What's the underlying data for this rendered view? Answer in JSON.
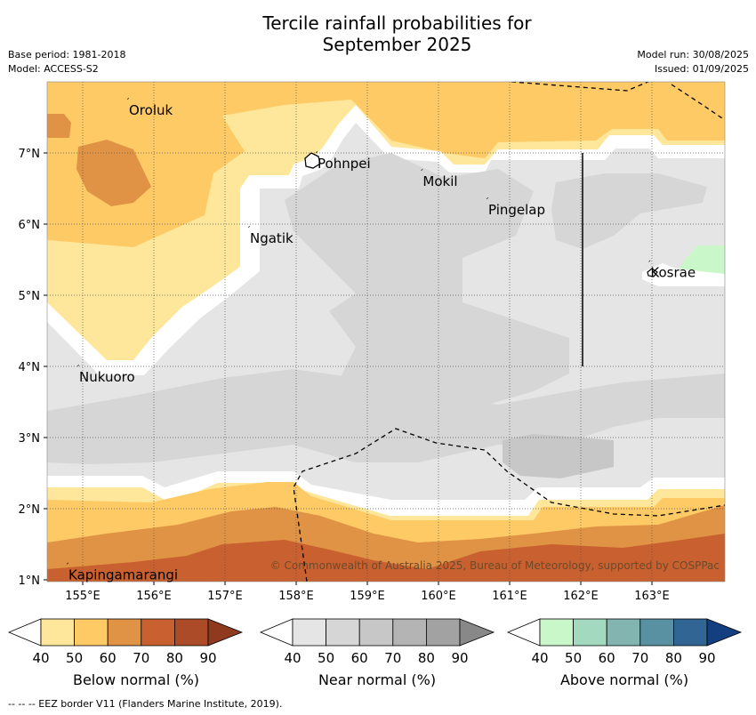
{
  "header": {
    "title_line1": "Tercile rainfall probabilities for",
    "title_line2": "September 2025",
    "base_period": "Base period: 1981-2018",
    "model": "Model: ACCESS-S2",
    "model_run": "Model run: 30/08/2025",
    "issued": "Issued: 01/09/2025"
  },
  "map": {
    "lon_labels": [
      "155°E",
      "156°E",
      "157°E",
      "158°E",
      "159°E",
      "160°E",
      "161°E",
      "162°E",
      "163°E"
    ],
    "lat_labels": [
      "7°N",
      "6°N",
      "5°N",
      "4°N",
      "3°N",
      "2°N",
      "1°N"
    ],
    "places": [
      {
        "name": "Oroluk",
        "lon": 155.65,
        "lat": 7.6
      },
      {
        "name": "Pohnpei",
        "lon": 158.3,
        "lat": 6.85
      },
      {
        "name": "Mokil",
        "lon": 159.78,
        "lat": 6.6
      },
      {
        "name": "Pingelap",
        "lon": 160.7,
        "lat": 6.2
      },
      {
        "name": "Ngatik",
        "lon": 157.35,
        "lat": 5.8
      },
      {
        "name": "Kosrae",
        "lon": 162.98,
        "lat": 5.32
      },
      {
        "name": "Nukuoro",
        "lon": 154.95,
        "lat": 3.85
      },
      {
        "name": "Kapingamarangi",
        "lon": 154.8,
        "lat": 1.07
      }
    ],
    "copyright": "© Commonwealth of Australia 2025, Bureau of Meteorology, supported by COSPPac"
  },
  "colorbars": [
    {
      "title": "Below normal (%)",
      "colors": [
        "#fee79a",
        "#fdca66",
        "#e09344",
        "#c8612f",
        "#ac4b28",
        "#8f3a1f"
      ]
    },
    {
      "title": "Near normal (%)",
      "colors": [
        "#e5e5e5",
        "#d6d6d6",
        "#c7c7c7",
        "#b4b4b4",
        "#a2a2a2",
        "#888888"
      ]
    },
    {
      "title": "Above normal (%)",
      "colors": [
        "#c9f7c9",
        "#a3d9be",
        "#82b5b0",
        "#5a91a2",
        "#306594",
        "#133f80"
      ]
    }
  ],
  "colorbar_ticks": [
    "40",
    "50",
    "60",
    "70",
    "80",
    "90"
  ],
  "footer": "--  --  -- EEZ border V11 (Flanders Marine Institute, 2019)."
}
